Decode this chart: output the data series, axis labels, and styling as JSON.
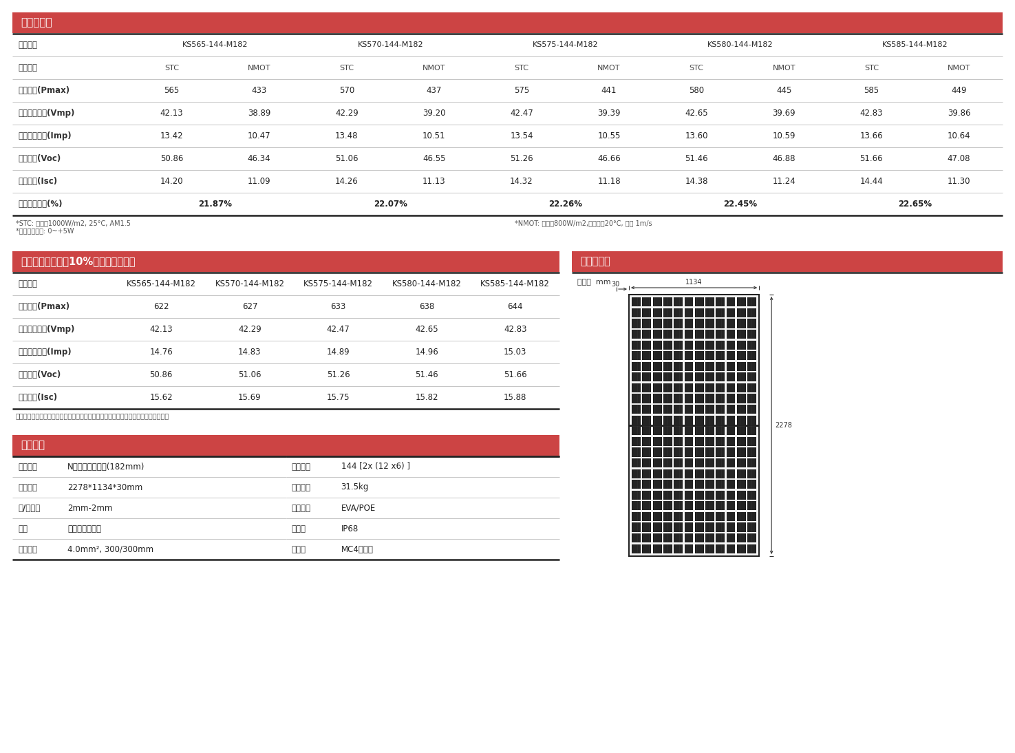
{
  "bg_color": "#ffffff",
  "header_color": "#cc4444",
  "header_text_color": "#ffffff",
  "label_color": "#222222",
  "value_color": "#222222",
  "line_color": "#bbbbbb",
  "thick_line_color": "#222222",
  "section1_title": "电性能参数",
  "section1_rows": [
    {
      "label": "组件型号",
      "type": "model",
      "values": [
        "KS565-144-M182",
        "",
        "KS570-144-M182",
        "",
        "KS575-144-M182",
        "",
        "KS580-144-M182",
        "",
        "KS585-144-M182",
        ""
      ]
    },
    {
      "label": "测试条件",
      "type": "condition",
      "values": [
        "STC",
        "NMOT",
        "STC",
        "NMOT",
        "STC",
        "NMOT",
        "STC",
        "NMOT",
        "STC",
        "NMOT"
      ]
    },
    {
      "label": "最大功率(Pmax)",
      "type": "data",
      "values": [
        "565",
        "433",
        "570",
        "437",
        "575",
        "441",
        "580",
        "445",
        "585",
        "449"
      ]
    },
    {
      "label": "峰值工作电压(Vmp)",
      "type": "data",
      "values": [
        "42.13",
        "38.89",
        "42.29",
        "39.20",
        "42.47",
        "39.39",
        "42.65",
        "39.69",
        "42.83",
        "39.86"
      ]
    },
    {
      "label": "峰值工作电流(Imp)",
      "type": "data",
      "values": [
        "13.42",
        "10.47",
        "13.48",
        "10.51",
        "13.54",
        "10.55",
        "13.60",
        "10.59",
        "13.66",
        "10.64"
      ]
    },
    {
      "label": "开路电压(Voc)",
      "type": "data",
      "values": [
        "50.86",
        "46.34",
        "51.06",
        "46.55",
        "51.26",
        "46.66",
        "51.46",
        "46.88",
        "51.66",
        "47.08"
      ]
    },
    {
      "label": "短路电流(Isc)",
      "type": "data",
      "values": [
        "14.20",
        "11.09",
        "14.26",
        "11.13",
        "14.32",
        "11.18",
        "14.38",
        "11.24",
        "14.44",
        "11.30"
      ]
    },
    {
      "label": "组件转换效率(%)",
      "type": "efficiency",
      "values": [
        "21.87%",
        "",
        "22.07%",
        "",
        "22.26%",
        "",
        "22.45%",
        "",
        "22.65%",
        ""
      ]
    }
  ],
  "section1_note1": "*STC: 辐照度1000W/m2, 25°C, AM1.5",
  "section1_note2": "*功率误差范围: 0~+5W",
  "section1_note_right": "*NMOT: 辐照度800W/m2,环境温度20°C, 风速 1m/s",
  "section2_title": "双面发电参数（以10%背面增益为例）",
  "section2_rows": [
    {
      "label": "组件型号",
      "values": [
        "KS565-144-M182",
        "KS570-144-M182",
        "KS575-144-M182",
        "KS580-144-M182",
        "KS585-144-M182"
      ]
    },
    {
      "label": "最大功率(Pmax)",
      "values": [
        "622",
        "627",
        "633",
        "638",
        "644"
      ]
    },
    {
      "label": "峰值工作电压(Vmp)",
      "values": [
        "42.13",
        "42.29",
        "42.47",
        "42.65",
        "42.83"
      ]
    },
    {
      "label": "峰值工作电流(Imp)",
      "values": [
        "14.76",
        "14.83",
        "14.89",
        "14.96",
        "15.03"
      ]
    },
    {
      "label": "开路电压(Voc)",
      "values": [
        "50.86",
        "51.06",
        "51.26",
        "51.46",
        "51.66"
      ]
    },
    {
      "label": "短路电流(Isc)",
      "values": [
        "15.62",
        "15.69",
        "15.75",
        "15.82",
        "15.88"
      ]
    }
  ],
  "section2_note": "注：产品目录中的电性能参数数用于比较不同组件，不代表单个组件的具体性能承诺。",
  "section3_title": "组件尺寸图",
  "section3_unit": "单位：  mm",
  "dim_width": "1134",
  "dim_height": "2278",
  "dim_depth": "30",
  "section4_title": "机械参数",
  "section4_left": [
    {
      "label": "电池类型",
      "value": "N型单晶硅电池片(182mm)"
    },
    {
      "label": "组件尺寸",
      "value": "2278*1134*30mm"
    },
    {
      "label": "前/后玻璃",
      "value": "2mm-2mm"
    },
    {
      "label": "边框",
      "value": "阳极氧化铝合金"
    },
    {
      "label": "输出导线",
      "value": "4.0mm², 300/300mm"
    }
  ],
  "section4_right": [
    {
      "label": "电池排列",
      "value": "144 [2x (12 x6) ]"
    },
    {
      "label": "组件重量",
      "value": "31.5kg"
    },
    {
      "label": "封装材料",
      "value": "EVA/POE"
    },
    {
      "label": "接线盒",
      "value": "IP68"
    },
    {
      "label": "连接器",
      "value": "MC4可兼容"
    }
  ]
}
